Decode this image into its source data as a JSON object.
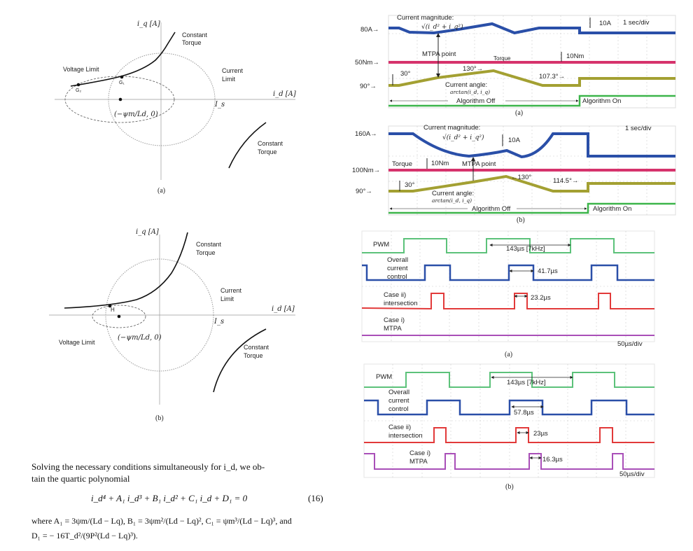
{
  "figure_left_a": {
    "axis_q": "i_q [A]",
    "axis_d": "i_d [A]",
    "is_label": "I_s",
    "constant_torque_top": [
      "Constant",
      "Torque"
    ],
    "constant_torque_bottom": [
      "Constant",
      "Torque"
    ],
    "voltage_limit": "Voltage Limit",
    "current_limit": [
      "Current",
      "Limit"
    ],
    "point_g1": "G₁",
    "point_g2": "G₂",
    "center_label": "(−ψm/Ld, 0)",
    "caption": "(a)"
  },
  "figure_left_b": {
    "axis_q": "i_q [A]",
    "axis_d": "i_d [A]",
    "is_label": "I_s",
    "constant_torque_top": [
      "Constant",
      "Torque"
    ],
    "constant_torque_bottom": [
      "Constant",
      "Torque"
    ],
    "voltage_limit": "Voltage Limit",
    "current_limit": [
      "Current",
      "Limit"
    ],
    "point_h": "H",
    "center_label": "(−ψm/Ld, 0)",
    "caption": "(b)"
  },
  "scope_top_a": {
    "current_magnitude": "Current magnitude:",
    "magnitude_formula": "√(i_d² + i_q²)",
    "current_level": "80A→",
    "scale_current": "10A",
    "time_div": "1 sec/div",
    "mtpa": "MTPA point",
    "torque": "Torque",
    "scale_torque": "10Nm",
    "torque_level": "50Nm→",
    "angle_step": "30°",
    "angle_peak": "130°→",
    "angle_on": "107.3°→",
    "angle_level": "90°→",
    "current_angle": "Current angle:",
    "angle_formula": "arctan(i_d, i_q)",
    "algorithm_off": "Algorithm Off",
    "algorithm_on": "Algorithm On",
    "caption": "(a)",
    "colors": {
      "current": "#2a4fa8",
      "torque": "#d6336c",
      "angle": "#a3a032",
      "flag": "#3cb54a"
    }
  },
  "scope_top_b": {
    "current_magnitude": "Current magnitude:",
    "magnitude_formula": "√(i_d² + i_q²)",
    "current_level": "160A→",
    "scale_current": "10A",
    "time_div": "1 sec/div",
    "mtpa": "MTPA point",
    "torque": "Torque",
    "scale_torque": "10Nm",
    "torque_level": "100Nm→",
    "angle_step": "30°",
    "angle_peak": "←130°",
    "angle_on": "114.5°→",
    "angle_level": "90°→",
    "current_angle": "Current angle:",
    "angle_formula": "arctan(i_d, i_q)",
    "algorithm_off": "Algorithm Off",
    "algorithm_on": "Algorithm On",
    "caption": "(b)"
  },
  "scope_timing_a": {
    "pwm": "PWM",
    "period": "143µs [7kHz]",
    "overall": [
      "Overall",
      "current",
      "control"
    ],
    "overall_time": "41.7µs",
    "case2": [
      "Case ii)",
      "intersection"
    ],
    "case2_time": "23.2µs",
    "case1": [
      "Case i)",
      "MTPA"
    ],
    "time_div": "50µs/div",
    "caption": "(a)",
    "colors": {
      "pwm": "#5cc27a",
      "overall": "#2a4fa8",
      "case2": "#e23a3a",
      "case1": "#a94fb8"
    }
  },
  "scope_timing_b": {
    "pwm": "PWM",
    "period": "143µs [7kHz]",
    "overall": [
      "Overall",
      "current",
      "control"
    ],
    "overall_time": "57.8µs",
    "case2": [
      "Case ii)",
      "intersection"
    ],
    "case2_time": "23µs",
    "case1": [
      "Case i)",
      "MTPA"
    ],
    "case1_time": "16.3µs",
    "time_div": "50µs/div",
    "caption": "(b)"
  },
  "text": {
    "para_line1": "Solving the necessary conditions simultaneously for i_d, we ob-",
    "para_line2": "tain the quartic polynomial",
    "equation": "i_d⁴ + A₁ i_d³ + B₁ i_d² + C₁ i_d + D₁ = 0",
    "equation_number": "(16)",
    "where_line1": "where A₁ = 3ψm/(Ld − Lq),  B₁ = 3ψm²/(Ld − Lq)²,  C₁ = ψm³/(Ld − Lq)³,  and",
    "where_line2": "D₁ = − 16T_d²/(9P²(Ld − Lq)³)."
  }
}
